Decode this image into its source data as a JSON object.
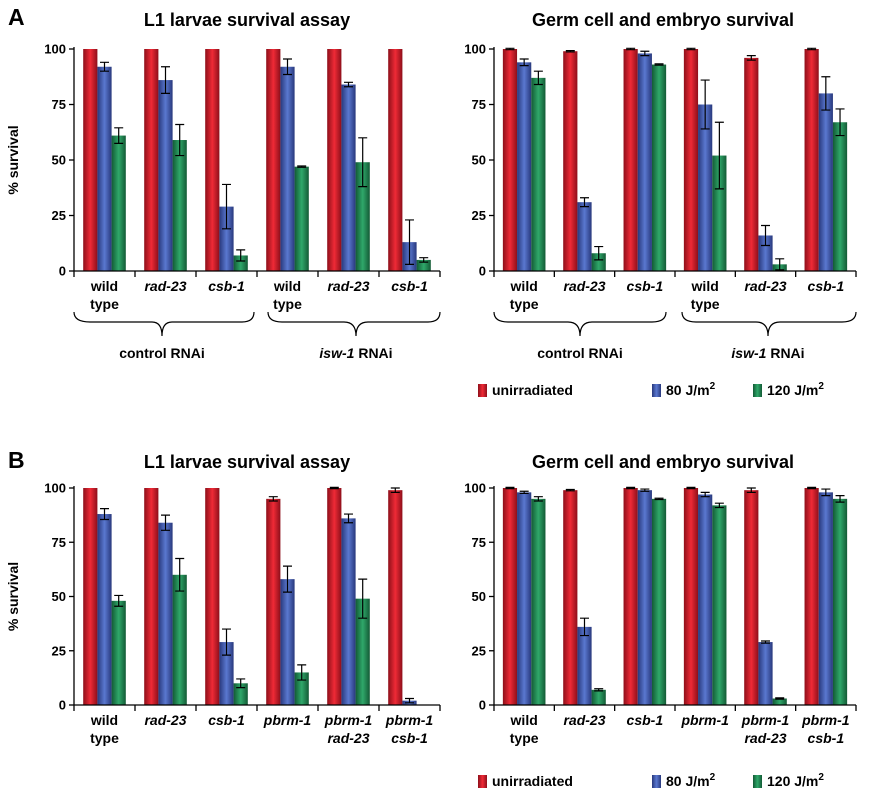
{
  "panels": [
    {
      "letter": "A",
      "legend": [
        {
          "label": "unirradiated",
          "color": "#d7182a"
        },
        {
          "label": "80 J/m",
          "sup": "2",
          "color": "#3a57b0"
        },
        {
          "label": "120 J/m",
          "sup": "2",
          "color": "#1f8a55"
        }
      ],
      "groups": [
        {
          "label": "control RNAi"
        },
        {
          "label_italic": "isw-1",
          "label_rest": " RNAi"
        }
      ]
    },
    {
      "letter": "B",
      "legend": [
        {
          "label": "unirradiated",
          "color": "#d7182a"
        },
        {
          "label": "80 J/m",
          "sup": "2",
          "color": "#3a57b0"
        },
        {
          "label": "120 J/m",
          "sup": "2",
          "color": "#1f8a55"
        }
      ],
      "groups": []
    }
  ],
  "chart_data": [
    {
      "type": "bar",
      "panel": "A",
      "title": "L1 larvae survival assay",
      "ylabel": "% survival",
      "ylim": [
        0,
        100
      ],
      "yticks": [
        "0",
        "25",
        "50",
        "75",
        "100"
      ],
      "categories": [
        {
          "lines": [
            "wild",
            "type"
          ],
          "italic": false
        },
        {
          "lines": [
            "rad-23"
          ],
          "italic": true
        },
        {
          "lines": [
            "csb-1"
          ],
          "italic": true
        },
        {
          "lines": [
            "wild",
            "type"
          ],
          "italic": false
        },
        {
          "lines": [
            "rad-23"
          ],
          "italic": true
        },
        {
          "lines": [
            "csb-1"
          ],
          "italic": true
        }
      ],
      "series": [
        {
          "name": "unirradiated",
          "values": [
            100,
            100,
            100,
            100,
            100,
            100
          ],
          "errors": [
            0,
            0,
            0,
            0,
            0,
            0
          ]
        },
        {
          "name": "80 J/m2",
          "values": [
            92,
            86,
            29,
            92,
            84,
            13
          ],
          "errors": [
            2,
            6,
            10,
            3.5,
            1,
            10
          ]
        },
        {
          "name": "120 J/m2",
          "values": [
            61,
            59,
            7,
            47,
            49,
            5
          ],
          "errors": [
            3.5,
            7,
            2.5,
            0.3,
            11,
            1
          ]
        }
      ]
    },
    {
      "type": "bar",
      "panel": "A",
      "title": "Germ cell and embryo survival",
      "ylabel": "",
      "ylim": [
        0,
        100
      ],
      "yticks": [
        "0",
        "25",
        "50",
        "75",
        "100"
      ],
      "categories": [
        {
          "lines": [
            "wild",
            "type"
          ],
          "italic": false
        },
        {
          "lines": [
            "rad-23"
          ],
          "italic": true
        },
        {
          "lines": [
            "csb-1"
          ],
          "italic": true
        },
        {
          "lines": [
            "wild",
            "type"
          ],
          "italic": false
        },
        {
          "lines": [
            "rad-23"
          ],
          "italic": true
        },
        {
          "lines": [
            "csb-1"
          ],
          "italic": true
        }
      ],
      "series": [
        {
          "name": "unirradiated",
          "values": [
            100,
            99,
            100,
            100,
            96,
            100
          ],
          "errors": [
            0.3,
            0.3,
            0.3,
            0.3,
            1,
            0.3
          ]
        },
        {
          "name": "80 J/m2",
          "values": [
            94,
            31,
            98,
            75,
            16,
            80
          ],
          "errors": [
            1.5,
            2,
            1,
            11,
            4.5,
            7.5
          ]
        },
        {
          "name": "120 J/m2",
          "values": [
            87,
            8,
            93,
            52,
            3,
            67
          ],
          "errors": [
            3,
            3,
            0.3,
            15,
            2.5,
            6
          ]
        }
      ]
    },
    {
      "type": "bar",
      "panel": "B",
      "title": "L1 larvae survival assay",
      "ylabel": "% survival",
      "ylim": [
        0,
        100
      ],
      "yticks": [
        "0",
        "25",
        "50",
        "75",
        "100"
      ],
      "categories": [
        {
          "lines": [
            "wild",
            "type"
          ],
          "italic": false
        },
        {
          "lines": [
            "rad-23"
          ],
          "italic": true
        },
        {
          "lines": [
            "csb-1"
          ],
          "italic": true
        },
        {
          "lines": [
            "pbrm-1"
          ],
          "italic": true
        },
        {
          "lines": [
            "pbrm-1",
            "rad-23"
          ],
          "italic": true
        },
        {
          "lines": [
            "pbrm-1",
            "csb-1"
          ],
          "italic": true
        }
      ],
      "series": [
        {
          "name": "unirradiated",
          "values": [
            100,
            100,
            100,
            95,
            100,
            99
          ],
          "errors": [
            0,
            0,
            0,
            1,
            0.3,
            1
          ]
        },
        {
          "name": "80 J/m2",
          "values": [
            88,
            84,
            29,
            58,
            86,
            2
          ],
          "errors": [
            2.5,
            3.5,
            6,
            6,
            2,
            1
          ]
        },
        {
          "name": "120 J/m2",
          "values": [
            48,
            60,
            10,
            15,
            49,
            0
          ],
          "errors": [
            2.5,
            7.5,
            2,
            3.5,
            9,
            0
          ]
        }
      ]
    },
    {
      "type": "bar",
      "panel": "B",
      "title": "Germ cell and embryo survival",
      "ylabel": "",
      "ylim": [
        0,
        100
      ],
      "yticks": [
        "0",
        "25",
        "50",
        "75",
        "100"
      ],
      "categories": [
        {
          "lines": [
            "wild",
            "type"
          ],
          "italic": false
        },
        {
          "lines": [
            "rad-23"
          ],
          "italic": true
        },
        {
          "lines": [
            "csb-1"
          ],
          "italic": true
        },
        {
          "lines": [
            "pbrm-1"
          ],
          "italic": true
        },
        {
          "lines": [
            "pbrm-1",
            "rad-23"
          ],
          "italic": true
        },
        {
          "lines": [
            "pbrm-1",
            "csb-1"
          ],
          "italic": true
        }
      ],
      "series": [
        {
          "name": "unirradiated",
          "values": [
            100,
            99,
            100,
            100,
            99,
            100
          ],
          "errors": [
            0.3,
            0.3,
            0.3,
            0.3,
            1,
            0.3
          ]
        },
        {
          "name": "80 J/m2",
          "values": [
            98,
            36,
            99,
            97,
            29,
            98
          ],
          "errors": [
            0.5,
            4,
            0.5,
            1,
            0.5,
            1.5
          ]
        },
        {
          "name": "120 J/m2",
          "values": [
            95,
            7,
            95,
            92,
            3,
            95
          ],
          "errors": [
            1,
            0.5,
            0.3,
            1,
            0.3,
            1.5
          ]
        }
      ]
    }
  ]
}
